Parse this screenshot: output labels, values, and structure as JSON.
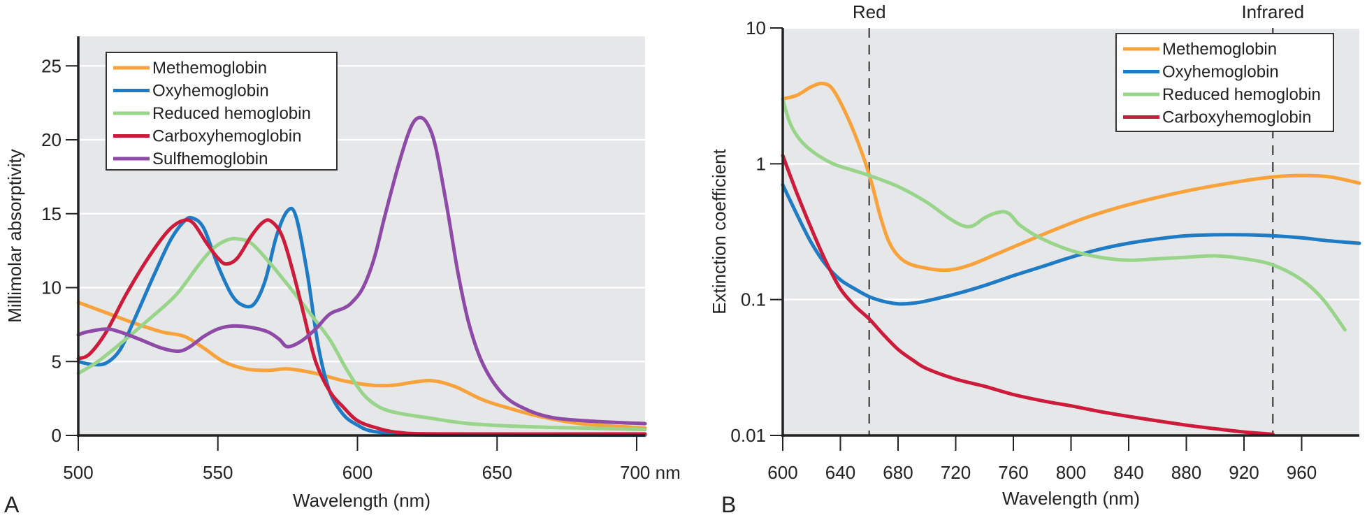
{
  "chart_data": [
    {
      "panel": "A",
      "type": "line",
      "title": "",
      "xlabel": "Wavelength (nm)",
      "ylabel": "Millimolar absorptivity",
      "xlim": [
        500,
        703
      ],
      "ylim": [
        0,
        27
      ],
      "yscale": "linear",
      "x_ticks": [
        500,
        550,
        600,
        650,
        700
      ],
      "x_tick_labels": [
        "500",
        "550",
        "600",
        "650",
        "700 nm"
      ],
      "y_ticks": [
        0,
        5,
        10,
        15,
        20,
        25
      ],
      "y_tick_labels": [
        "0",
        "5",
        "10",
        "15",
        "20",
        "25"
      ],
      "grid": true,
      "legend_position": "top-left",
      "series": [
        {
          "name": "Methemoglobin",
          "color": "#f7a23b",
          "points": [
            [
              500,
              9.0
            ],
            [
              510,
              8.3
            ],
            [
              520,
              7.6
            ],
            [
              530,
              7.0
            ],
            [
              538,
              6.7
            ],
            [
              545,
              5.9
            ],
            [
              552,
              5.0
            ],
            [
              560,
              4.5
            ],
            [
              568,
              4.4
            ],
            [
              575,
              4.5
            ],
            [
              585,
              4.2
            ],
            [
              595,
              3.7
            ],
            [
              605,
              3.4
            ],
            [
              613,
              3.4
            ],
            [
              620,
              3.6
            ],
            [
              627,
              3.7
            ],
            [
              635,
              3.3
            ],
            [
              645,
              2.4
            ],
            [
              655,
              1.8
            ],
            [
              665,
              1.3
            ],
            [
              680,
              0.8
            ],
            [
              703,
              0.5
            ]
          ]
        },
        {
          "name": "Oxyhemoglobin",
          "color": "#1f7cc4",
          "points": [
            [
              500,
              5.0
            ],
            [
              505,
              4.8
            ],
            [
              510,
              4.9
            ],
            [
              515,
              5.8
            ],
            [
              520,
              7.8
            ],
            [
              527,
              10.8
            ],
            [
              533,
              13.2
            ],
            [
              538,
              14.5
            ],
            [
              541,
              14.7
            ],
            [
              545,
              14.0
            ],
            [
              550,
              11.5
            ],
            [
              555,
              9.5
            ],
            [
              559,
              8.8
            ],
            [
              563,
              8.9
            ],
            [
              567,
              10.5
            ],
            [
              571,
              13.5
            ],
            [
              575,
              15.2
            ],
            [
              578,
              14.8
            ],
            [
              582,
              11.0
            ],
            [
              586,
              6.0
            ],
            [
              590,
              3.0
            ],
            [
              595,
              1.4
            ],
            [
              600,
              0.7
            ],
            [
              605,
              0.3
            ],
            [
              615,
              0.1
            ],
            [
              630,
              0.03
            ],
            [
              703,
              0.02
            ]
          ]
        },
        {
          "name": "Reduced hemoglobin",
          "color": "#98d48a",
          "points": [
            [
              500,
              4.2
            ],
            [
              507,
              5.0
            ],
            [
              515,
              6.2
            ],
            [
              525,
              7.8
            ],
            [
              535,
              9.5
            ],
            [
              543,
              11.5
            ],
            [
              548,
              12.6
            ],
            [
              553,
              13.2
            ],
            [
              557,
              13.3
            ],
            [
              562,
              13.0
            ],
            [
              568,
              11.8
            ],
            [
              575,
              10.2
            ],
            [
              582,
              8.5
            ],
            [
              590,
              6.5
            ],
            [
              596,
              4.5
            ],
            [
              602,
              2.8
            ],
            [
              608,
              1.9
            ],
            [
              615,
              1.5
            ],
            [
              625,
              1.2
            ],
            [
              640,
              0.8
            ],
            [
              660,
              0.6
            ],
            [
              680,
              0.5
            ],
            [
              703,
              0.4
            ]
          ]
        },
        {
          "name": "Carboxyhemoglobin",
          "color": "#cc1b3b",
          "points": [
            [
              500,
              5.2
            ],
            [
              504,
              5.5
            ],
            [
              510,
              7.0
            ],
            [
              517,
              9.5
            ],
            [
              525,
              12.0
            ],
            [
              532,
              13.8
            ],
            [
              537,
              14.5
            ],
            [
              541,
              14.4
            ],
            [
              546,
              13.0
            ],
            [
              550,
              12.0
            ],
            [
              553,
              11.6
            ],
            [
              557,
              12.0
            ],
            [
              562,
              13.5
            ],
            [
              566,
              14.4
            ],
            [
              569,
              14.5
            ],
            [
              573,
              13.5
            ],
            [
              577,
              11.0
            ],
            [
              581,
              8.0
            ],
            [
              585,
              5.0
            ],
            [
              590,
              3.0
            ],
            [
              595,
              1.9
            ],
            [
              600,
              1.0
            ],
            [
              607,
              0.5
            ],
            [
              615,
              0.2
            ],
            [
              630,
              0.1
            ],
            [
              703,
              0.1
            ]
          ]
        },
        {
          "name": "Sulfhemoglobin",
          "color": "#8d4aa6",
          "points": [
            [
              500,
              6.8
            ],
            [
              503,
              7.0
            ],
            [
              510,
              7.2
            ],
            [
              515,
              7.0
            ],
            [
              522,
              6.5
            ],
            [
              530,
              5.9
            ],
            [
              536,
              5.7
            ],
            [
              540,
              6.0
            ],
            [
              545,
              6.7
            ],
            [
              550,
              7.2
            ],
            [
              555,
              7.4
            ],
            [
              562,
              7.3
            ],
            [
              568,
              7.0
            ],
            [
              572,
              6.5
            ],
            [
              575,
              6.0
            ],
            [
              580,
              6.4
            ],
            [
              585,
              7.2
            ],
            [
              590,
              8.2
            ],
            [
              595,
              8.6
            ],
            [
              598,
              9.0
            ],
            [
              602,
              10.0
            ],
            [
              606,
              12.0
            ],
            [
              610,
              15.0
            ],
            [
              615,
              18.5
            ],
            [
              619,
              20.8
            ],
            [
              622,
              21.5
            ],
            [
              625,
              21.1
            ],
            [
              628,
              19.5
            ],
            [
              632,
              15.5
            ],
            [
              636,
              11.0
            ],
            [
              640,
              7.5
            ],
            [
              645,
              4.8
            ],
            [
              652,
              2.8
            ],
            [
              660,
              1.8
            ],
            [
              670,
              1.2
            ],
            [
              685,
              0.95
            ],
            [
              703,
              0.8
            ]
          ]
        }
      ]
    },
    {
      "panel": "B",
      "type": "line",
      "title": "",
      "xlabel": "Wavelength (nm)",
      "ylabel": "Extinction coefficient",
      "xlim": [
        600,
        1000
      ],
      "ylim": [
        0.01,
        10
      ],
      "yscale": "log",
      "x_ticks": [
        600,
        640,
        680,
        720,
        760,
        800,
        840,
        880,
        920,
        960
      ],
      "x_tick_labels": [
        "600",
        "640",
        "680",
        "720",
        "760",
        "800",
        "840",
        "880",
        "920",
        "960"
      ],
      "y_ticks": [
        0.01,
        0.1,
        1,
        10
      ],
      "y_tick_labels": [
        "0.01",
        "0.1",
        "1",
        "10"
      ],
      "grid": true,
      "legend_position": "top-right",
      "annotations": [
        {
          "label": "Red",
          "x": 660,
          "style": "dashed-vertical-line"
        },
        {
          "label": "Infrared",
          "x": 940,
          "style": "dashed-vertical-line"
        }
      ],
      "series": [
        {
          "name": "Methemoglobin",
          "color": "#f7a23b",
          "points": [
            [
              600,
              3.0
            ],
            [
              610,
              3.2
            ],
            [
              620,
              3.7
            ],
            [
              628,
              3.9
            ],
            [
              635,
              3.5
            ],
            [
              645,
              2.2
            ],
            [
              655,
              1.2
            ],
            [
              662,
              0.7
            ],
            [
              668,
              0.4
            ],
            [
              675,
              0.25
            ],
            [
              685,
              0.19
            ],
            [
              700,
              0.17
            ],
            [
              715,
              0.165
            ],
            [
              730,
              0.18
            ],
            [
              750,
              0.22
            ],
            [
              780,
              0.3
            ],
            [
              810,
              0.4
            ],
            [
              840,
              0.5
            ],
            [
              880,
              0.63
            ],
            [
              920,
              0.75
            ],
            [
              940,
              0.8
            ],
            [
              960,
              0.82
            ],
            [
              980,
              0.8
            ],
            [
              1000,
              0.72
            ]
          ]
        },
        {
          "name": "Oxyhemoglobin",
          "color": "#1f7cc4",
          "points": [
            [
              600,
              0.7
            ],
            [
              610,
              0.42
            ],
            [
              620,
              0.26
            ],
            [
              630,
              0.18
            ],
            [
              640,
              0.14
            ],
            [
              650,
              0.12
            ],
            [
              660,
              0.105
            ],
            [
              670,
              0.097
            ],
            [
              680,
              0.093
            ],
            [
              690,
              0.094
            ],
            [
              700,
              0.098
            ],
            [
              720,
              0.11
            ],
            [
              740,
              0.127
            ],
            [
              760,
              0.15
            ],
            [
              780,
              0.175
            ],
            [
              800,
              0.205
            ],
            [
              820,
              0.235
            ],
            [
              840,
              0.26
            ],
            [
              860,
              0.28
            ],
            [
              880,
              0.295
            ],
            [
              900,
              0.3
            ],
            [
              920,
              0.3
            ],
            [
              940,
              0.295
            ],
            [
              960,
              0.285
            ],
            [
              980,
              0.27
            ],
            [
              1000,
              0.26
            ]
          ]
        },
        {
          "name": "Reduced hemoglobin",
          "color": "#98d48a",
          "points": [
            [
              600,
              3.0
            ],
            [
              605,
              2.0
            ],
            [
              612,
              1.5
            ],
            [
              622,
              1.2
            ],
            [
              635,
              1.0
            ],
            [
              648,
              0.9
            ],
            [
              660,
              0.82
            ],
            [
              680,
              0.68
            ],
            [
              700,
              0.52
            ],
            [
              715,
              0.4
            ],
            [
              725,
              0.35
            ],
            [
              732,
              0.35
            ],
            [
              740,
              0.4
            ],
            [
              750,
              0.44
            ],
            [
              757,
              0.43
            ],
            [
              765,
              0.35
            ],
            [
              780,
              0.28
            ],
            [
              800,
              0.23
            ],
            [
              820,
              0.205
            ],
            [
              840,
              0.195
            ],
            [
              860,
              0.2
            ],
            [
              880,
              0.205
            ],
            [
              900,
              0.21
            ],
            [
              920,
              0.2
            ],
            [
              940,
              0.18
            ],
            [
              960,
              0.14
            ],
            [
              975,
              0.1
            ],
            [
              990,
              0.06
            ]
          ]
        },
        {
          "name": "Carboxyhemoglobin",
          "color": "#cc1b3b",
          "points": [
            [
              600,
              1.15
            ],
            [
              610,
              0.6
            ],
            [
              620,
              0.33
            ],
            [
              630,
              0.19
            ],
            [
              640,
              0.12
            ],
            [
              650,
              0.09
            ],
            [
              660,
              0.072
            ],
            [
              670,
              0.055
            ],
            [
              680,
              0.043
            ],
            [
              690,
              0.036
            ],
            [
              700,
              0.031
            ],
            [
              720,
              0.026
            ],
            [
              740,
              0.023
            ],
            [
              760,
              0.02
            ],
            [
              780,
              0.018
            ],
            [
              800,
              0.0165
            ],
            [
              820,
              0.015
            ],
            [
              840,
              0.0138
            ],
            [
              860,
              0.0128
            ],
            [
              880,
              0.0119
            ],
            [
              900,
              0.0112
            ],
            [
              920,
              0.0106
            ],
            [
              940,
              0.0102
            ]
          ]
        }
      ]
    }
  ],
  "panel_labels": [
    "A",
    "B"
  ]
}
